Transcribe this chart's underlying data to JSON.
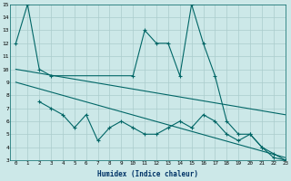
{
  "xlabel": "Humidex (Indice chaleur)",
  "bg_color": "#cce8e8",
  "line_color": "#006666",
  "grid_color": "#aacccc",
  "xmin": -0.5,
  "xmax": 23,
  "ymin": 3,
  "ymax": 15,
  "series1_x": [
    0,
    1,
    2,
    3,
    10,
    11,
    12,
    13,
    14,
    15,
    16,
    17,
    18,
    19,
    20,
    21,
    22,
    23
  ],
  "series1_y": [
    12,
    15,
    10,
    9.5,
    9.5,
    13,
    12,
    12,
    9.5,
    15,
    12,
    9.5,
    6,
    5,
    5,
    4,
    3.2,
    3
  ],
  "series2_x": [
    0,
    23
  ],
  "series2_y": [
    10.0,
    6.5
  ],
  "series3_x": [
    0,
    23
  ],
  "series3_y": [
    9.0,
    3.2
  ],
  "series4_x": [
    2,
    3,
    4,
    5,
    6,
    7,
    8,
    9,
    10,
    11,
    12,
    13,
    14,
    15,
    16,
    17,
    18,
    19,
    20,
    21,
    22,
    23
  ],
  "series4_y": [
    7.5,
    7,
    6.5,
    5.5,
    6.5,
    4.5,
    5.5,
    6,
    5.5,
    5,
    5,
    5.5,
    6,
    5.5,
    6.5,
    6,
    5,
    4.5,
    5,
    4,
    3.5,
    3
  ]
}
